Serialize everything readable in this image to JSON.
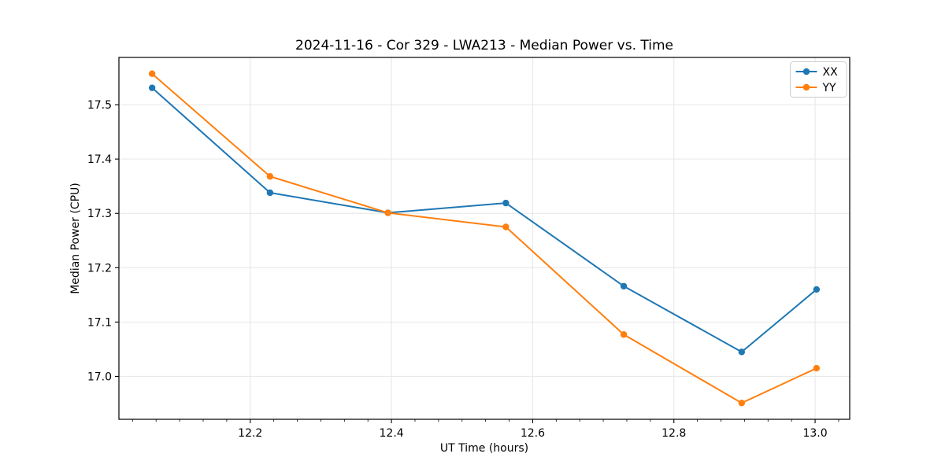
{
  "chart_data": {
    "type": "line",
    "title": "2024-11-16 - Cor 329 - LWA213 - Median Power vs. Time",
    "xlabel": "UT Time (hours)",
    "ylabel": "Median Power (CPU)",
    "x": [
      12.061,
      12.228,
      12.395,
      12.562,
      12.729,
      12.896,
      13.002
    ],
    "series": [
      {
        "name": "XX",
        "color": "#1f77b4",
        "values": [
          17.531,
          17.338,
          17.301,
          17.319,
          17.166,
          17.045,
          17.16
        ]
      },
      {
        "name": "YY",
        "color": "#ff7f0e",
        "values": [
          17.557,
          17.368,
          17.301,
          17.275,
          17.077,
          16.951,
          17.015
        ]
      }
    ],
    "xlim": [
      12.014,
      13.049
    ],
    "ylim": [
      16.921,
      17.587
    ],
    "xtick_values": [
      12.2,
      12.4,
      12.6,
      12.8,
      13.0
    ],
    "xtick_labels": [
      "12.2",
      "12.4",
      "12.6",
      "12.8",
      "13.0"
    ],
    "ytick_values": [
      17.0,
      17.1,
      17.2,
      17.3,
      17.4,
      17.5
    ],
    "ytick_labels": [
      "17.0",
      "17.1",
      "17.2",
      "17.3",
      "17.4",
      "17.5"
    ],
    "x_minor_step": 0.0333333,
    "grid": true,
    "grid_color": "#e6e6e6",
    "legend_position": "top-right",
    "legend_labels": [
      "XX",
      "YY"
    ]
  }
}
